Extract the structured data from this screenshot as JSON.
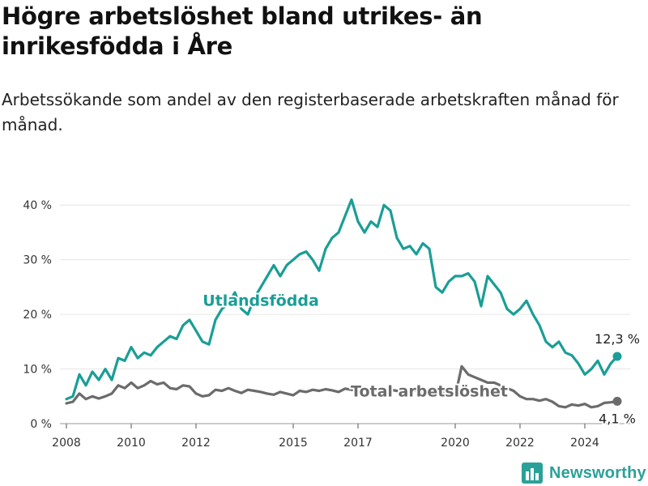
{
  "header": {
    "title": "Högre arbetslöshet bland utrikes- än inrikesfödda i Åre",
    "subtitle": "Arbetssökande som andel av den registerbaserade arbetskraften månad för månad."
  },
  "brand": {
    "name": "Newsworthy",
    "icon": "bar-chart-logo-icon",
    "color": "#2aa198"
  },
  "chart_data": {
    "type": "line",
    "title": "Högre arbetslöshet bland utrikes- än inrikesfödda i Åre",
    "subtitle": "Arbetssökande som andel av den registerbaserade arbetskraften månad för månad.",
    "xlabel": "",
    "ylabel": "",
    "xlim": [
      2007.8,
      2025.4
    ],
    "ylim": [
      0,
      43
    ],
    "x_ticks": [
      2008,
      2010,
      2012,
      2015,
      2017,
      2020,
      2022,
      2024
    ],
    "y_ticks": [
      0,
      10,
      20,
      30,
      40
    ],
    "y_tick_labels": [
      "0 %",
      "10 %",
      "20 %",
      "30 %",
      "40 %"
    ],
    "grid": "horizontal",
    "series": [
      {
        "name": "Utlandsfödda",
        "color": "#1a9e96",
        "x": [
          2008.0,
          2008.2,
          2008.4,
          2008.6,
          2008.8,
          2009.0,
          2009.2,
          2009.4,
          2009.6,
          2009.8,
          2010.0,
          2010.2,
          2010.4,
          2010.6,
          2010.8,
          2011.0,
          2011.2,
          2011.4,
          2011.6,
          2011.8,
          2012.0,
          2012.2,
          2012.4,
          2012.6,
          2012.8,
          2013.0,
          2013.2,
          2013.4,
          2013.6,
          2013.8,
          2014.0,
          2014.2,
          2014.4,
          2014.6,
          2014.8,
          2015.0,
          2015.2,
          2015.4,
          2015.6,
          2015.8,
          2016.0,
          2016.2,
          2016.4,
          2016.6,
          2016.8,
          2017.0,
          2017.2,
          2017.4,
          2017.6,
          2017.8,
          2018.0,
          2018.2,
          2018.4,
          2018.6,
          2018.8,
          2019.0,
          2019.2,
          2019.4,
          2019.6,
          2019.8,
          2020.0,
          2020.2,
          2020.4,
          2020.6,
          2020.8,
          2021.0,
          2021.2,
          2021.4,
          2021.6,
          2021.8,
          2022.0,
          2022.2,
          2022.4,
          2022.6,
          2022.8,
          2023.0,
          2023.2,
          2023.4,
          2023.6,
          2023.8,
          2024.0,
          2024.2,
          2024.4,
          2024.6,
          2024.8,
          2025.0
        ],
        "values": [
          4.5,
          5.0,
          9.0,
          7.0,
          9.5,
          8.0,
          10.0,
          8.0,
          12.0,
          11.5,
          14.0,
          12.0,
          13.0,
          12.5,
          14.0,
          15.0,
          16.0,
          15.5,
          18.0,
          19.0,
          17.0,
          15.0,
          14.5,
          19.0,
          21.0,
          22.0,
          24.0,
          21.0,
          20.0,
          23.0,
          25.0,
          27.0,
          29.0,
          27.0,
          29.0,
          30.0,
          31.0,
          31.5,
          30.0,
          28.0,
          32.0,
          34.0,
          35.0,
          38.0,
          41.0,
          37.0,
          35.0,
          37.0,
          36.0,
          40.0,
          39.0,
          34.0,
          32.0,
          32.5,
          31.0,
          33.0,
          32.0,
          25.0,
          24.0,
          26.0,
          27.0,
          27.0,
          27.5,
          26.0,
          21.5,
          27.0,
          25.5,
          24.0,
          21.0,
          20.0,
          21.0,
          22.5,
          20.0,
          18.0,
          15.0,
          14.0,
          15.0,
          13.0,
          12.5,
          11.0,
          9.0,
          10.0,
          11.5,
          9.0,
          11.0,
          12.3
        ]
      },
      {
        "name": "Total arbetslöshet",
        "color": "#6b6b6b",
        "x": [
          2008.0,
          2008.2,
          2008.4,
          2008.6,
          2008.8,
          2009.0,
          2009.2,
          2009.4,
          2009.6,
          2009.8,
          2010.0,
          2010.2,
          2010.4,
          2010.6,
          2010.8,
          2011.0,
          2011.2,
          2011.4,
          2011.6,
          2011.8,
          2012.0,
          2012.2,
          2012.4,
          2012.6,
          2012.8,
          2013.0,
          2013.2,
          2013.4,
          2013.6,
          2013.8,
          2014.0,
          2014.2,
          2014.4,
          2014.6,
          2014.8,
          2015.0,
          2015.2,
          2015.4,
          2015.6,
          2015.8,
          2016.0,
          2016.2,
          2016.4,
          2016.6,
          2016.8,
          2017.0,
          2017.2,
          2017.4,
          2017.6,
          2017.8,
          2018.0,
          2018.2,
          2018.4,
          2018.6,
          2018.8,
          2019.0,
          2019.2,
          2019.4,
          2019.6,
          2019.8,
          2020.0,
          2020.2,
          2020.4,
          2020.6,
          2020.8,
          2021.0,
          2021.2,
          2021.4,
          2021.6,
          2021.8,
          2022.0,
          2022.2,
          2022.4,
          2022.6,
          2022.8,
          2023.0,
          2023.2,
          2023.4,
          2023.6,
          2023.8,
          2024.0,
          2024.2,
          2024.4,
          2024.6,
          2024.8,
          2025.0
        ],
        "values": [
          3.7,
          4.0,
          5.5,
          4.5,
          5.0,
          4.6,
          5.0,
          5.5,
          7.0,
          6.5,
          7.5,
          6.5,
          7.0,
          7.8,
          7.2,
          7.5,
          6.5,
          6.3,
          7.0,
          6.8,
          5.5,
          5.0,
          5.2,
          6.2,
          6.0,
          6.5,
          6.0,
          5.6,
          6.2,
          6.0,
          5.8,
          5.5,
          5.3,
          5.8,
          5.5,
          5.2,
          6.0,
          5.8,
          6.2,
          6.0,
          6.3,
          6.1,
          5.8,
          6.4,
          6.2,
          6.0,
          6.2,
          6.5,
          6.0,
          6.3,
          6.2,
          6.0,
          5.8,
          6.2,
          6.0,
          5.7,
          6.0,
          5.8,
          5.5,
          6.0,
          5.0,
          10.5,
          9.0,
          8.5,
          8.0,
          7.5,
          7.5,
          7.0,
          6.5,
          6.0,
          5.0,
          4.5,
          4.5,
          4.2,
          4.5,
          4.0,
          3.2,
          3.0,
          3.5,
          3.3,
          3.6,
          3.0,
          3.2,
          3.8,
          3.9,
          4.1
        ]
      }
    ],
    "annotations": [
      {
        "text": "Utlandsfödda",
        "series": "Utlandsfödda",
        "x": 2013.0,
        "y": 22.5
      },
      {
        "text": "Total arbetslöshet",
        "series": "Total arbetslöshet",
        "x": 2019.0,
        "y": 6.5
      },
      {
        "text": "12,3 %",
        "series": "Utlandsfödda",
        "x": 2025.0,
        "y": 12.3
      },
      {
        "text": "4,1 %",
        "series": "Total arbetslöshet",
        "x": 2025.0,
        "y": 4.1
      }
    ]
  }
}
